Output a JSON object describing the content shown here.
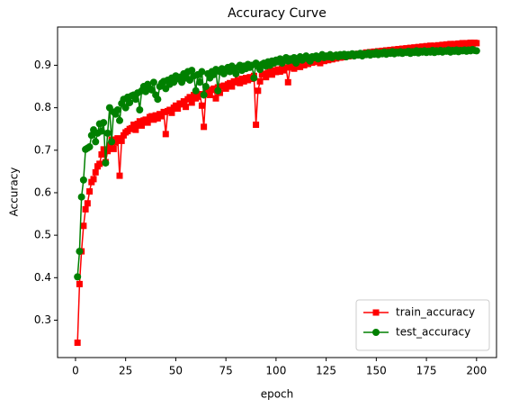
{
  "chart_data": {
    "type": "line",
    "title": "Accuracy Curve",
    "xlabel": "epoch",
    "ylabel": "Accuracy",
    "x": [
      1,
      2,
      3,
      4,
      5,
      6,
      7,
      8,
      9,
      10,
      11,
      12,
      13,
      14,
      15,
      16,
      17,
      18,
      19,
      20,
      21,
      22,
      23,
      24,
      25,
      26,
      27,
      28,
      29,
      30,
      31,
      32,
      33,
      34,
      35,
      36,
      37,
      38,
      39,
      40,
      41,
      42,
      43,
      44,
      45,
      46,
      47,
      48,
      49,
      50,
      51,
      52,
      53,
      54,
      55,
      56,
      57,
      58,
      59,
      60,
      61,
      62,
      63,
      64,
      65,
      66,
      67,
      68,
      69,
      70,
      71,
      72,
      73,
      74,
      75,
      76,
      77,
      78,
      79,
      80,
      81,
      82,
      83,
      84,
      85,
      86,
      87,
      88,
      89,
      90,
      91,
      92,
      93,
      94,
      95,
      96,
      97,
      98,
      99,
      100,
      101,
      102,
      103,
      104,
      105,
      106,
      107,
      108,
      109,
      110,
      111,
      112,
      113,
      114,
      115,
      116,
      117,
      118,
      119,
      120,
      121,
      122,
      123,
      124,
      125,
      126,
      127,
      128,
      129,
      130,
      131,
      132,
      133,
      134,
      135,
      136,
      137,
      138,
      139,
      140,
      141,
      142,
      143,
      144,
      145,
      146,
      147,
      148,
      149,
      150,
      151,
      152,
      153,
      154,
      155,
      156,
      157,
      158,
      159,
      160,
      161,
      162,
      163,
      164,
      165,
      166,
      167,
      168,
      169,
      170,
      171,
      172,
      173,
      174,
      175,
      176,
      177,
      178,
      179,
      180,
      181,
      182,
      183,
      184,
      185,
      186,
      187,
      188,
      189,
      190,
      191,
      192,
      193,
      194,
      195,
      196,
      197,
      198,
      199,
      200
    ],
    "series": [
      {
        "name": "train_accuracy",
        "color": "#ff0000",
        "marker": "square",
        "values": [
          0.247,
          0.385,
          0.462,
          0.522,
          0.561,
          0.575,
          0.603,
          0.625,
          0.632,
          0.648,
          0.662,
          0.668,
          0.69,
          0.702,
          0.672,
          0.698,
          0.712,
          0.725,
          0.703,
          0.718,
          0.728,
          0.64,
          0.722,
          0.735,
          0.742,
          0.745,
          0.75,
          0.752,
          0.76,
          0.748,
          0.762,
          0.768,
          0.758,
          0.77,
          0.772,
          0.765,
          0.778,
          0.78,
          0.772,
          0.782,
          0.775,
          0.785,
          0.78,
          0.79,
          0.738,
          0.792,
          0.795,
          0.788,
          0.8,
          0.805,
          0.798,
          0.81,
          0.808,
          0.815,
          0.802,
          0.82,
          0.825,
          0.812,
          0.83,
          0.822,
          0.826,
          0.832,
          0.805,
          0.755,
          0.835,
          0.838,
          0.83,
          0.842,
          0.845,
          0.822,
          0.848,
          0.835,
          0.85,
          0.852,
          0.845,
          0.855,
          0.858,
          0.85,
          0.862,
          0.86,
          0.865,
          0.858,
          0.868,
          0.862,
          0.87,
          0.865,
          0.872,
          0.868,
          0.875,
          0.76,
          0.84,
          0.862,
          0.878,
          0.88,
          0.872,
          0.882,
          0.885,
          0.878,
          0.888,
          0.884,
          0.89,
          0.885,
          0.892,
          0.888,
          0.895,
          0.86,
          0.895,
          0.898,
          0.892,
          0.9,
          0.902,
          0.896,
          0.905,
          0.9,
          0.908,
          0.903,
          0.91,
          0.906,
          0.912,
          0.908,
          0.912,
          0.905,
          0.915,
          0.91,
          0.916,
          0.912,
          0.918,
          0.914,
          0.92,
          0.916,
          0.92,
          0.918,
          0.922,
          0.919,
          0.923,
          0.921,
          0.925,
          0.922,
          0.926,
          0.924,
          0.927,
          0.925,
          0.928,
          0.926,
          0.93,
          0.928,
          0.931,
          0.929,
          0.932,
          0.93,
          0.933,
          0.931,
          0.934,
          0.932,
          0.935,
          0.933,
          0.936,
          0.934,
          0.937,
          0.935,
          0.938,
          0.936,
          0.939,
          0.937,
          0.94,
          0.938,
          0.941,
          0.939,
          0.942,
          0.94,
          0.943,
          0.941,
          0.944,
          0.942,
          0.945,
          0.943,
          0.946,
          0.944,
          0.946,
          0.945,
          0.947,
          0.945,
          0.948,
          0.946,
          0.949,
          0.947,
          0.95,
          0.948,
          0.95,
          0.949,
          0.951,
          0.949,
          0.952,
          0.95,
          0.952,
          0.951,
          0.953,
          0.951,
          0.953,
          0.952
        ]
      },
      {
        "name": "test_accuracy",
        "color": "#008000",
        "marker": "circle",
        "values": [
          0.402,
          0.462,
          0.59,
          0.63,
          0.702,
          0.705,
          0.708,
          0.735,
          0.748,
          0.72,
          0.74,
          0.762,
          0.745,
          0.765,
          0.67,
          0.74,
          0.8,
          0.72,
          0.79,
          0.785,
          0.795,
          0.77,
          0.81,
          0.82,
          0.8,
          0.825,
          0.812,
          0.828,
          0.83,
          0.82,
          0.835,
          0.795,
          0.84,
          0.85,
          0.838,
          0.855,
          0.845,
          0.842,
          0.86,
          0.83,
          0.82,
          0.85,
          0.858,
          0.862,
          0.845,
          0.865,
          0.855,
          0.87,
          0.86,
          0.875,
          0.868,
          0.872,
          0.86,
          0.88,
          0.87,
          0.885,
          0.865,
          0.888,
          0.875,
          0.84,
          0.878,
          0.86,
          0.885,
          0.83,
          0.85,
          0.88,
          0.87,
          0.885,
          0.878,
          0.89,
          0.84,
          0.885,
          0.892,
          0.88,
          0.89,
          0.895,
          0.885,
          0.898,
          0.89,
          0.88,
          0.895,
          0.9,
          0.888,
          0.898,
          0.892,
          0.902,
          0.895,
          0.9,
          0.87,
          0.905,
          0.898,
          0.89,
          0.902,
          0.905,
          0.898,
          0.908,
          0.9,
          0.91,
          0.905,
          0.912,
          0.908,
          0.915,
          0.905,
          0.912,
          0.918,
          0.91,
          0.915,
          0.912,
          0.918,
          0.905,
          0.915,
          0.92,
          0.912,
          0.918,
          0.922,
          0.915,
          0.91,
          0.92,
          0.918,
          0.922,
          0.915,
          0.92,
          0.925,
          0.918,
          0.922,
          0.92,
          0.925,
          0.918,
          0.922,
          0.924,
          0.92,
          0.925,
          0.922,
          0.926,
          0.92,
          0.925,
          0.923,
          0.927,
          0.922,
          0.926,
          0.924,
          0.928,
          0.922,
          0.927,
          0.925,
          0.929,
          0.924,
          0.928,
          0.926,
          0.93,
          0.925,
          0.929,
          0.927,
          0.931,
          0.926,
          0.93,
          0.928,
          0.932,
          0.927,
          0.931,
          0.929,
          0.932,
          0.928,
          0.931,
          0.93,
          0.933,
          0.928,
          0.932,
          0.93,
          0.934,
          0.929,
          0.933,
          0.931,
          0.934,
          0.93,
          0.933,
          0.931,
          0.935,
          0.93,
          0.934,
          0.932,
          0.935,
          0.931,
          0.934,
          0.933,
          0.936,
          0.931,
          0.935,
          0.933,
          0.936,
          0.932,
          0.935,
          0.934,
          0.936,
          0.933,
          0.936,
          0.934,
          0.937,
          0.935,
          0.934
        ]
      }
    ],
    "xlim": [
      -8.95,
      209.95
    ],
    "xticks": [
      0,
      25,
      50,
      75,
      100,
      125,
      150,
      175,
      200
    ],
    "ylim": [
      0.212,
      0.99
    ],
    "yticks": [
      0.3,
      0.4,
      0.5,
      0.6,
      0.7,
      0.8,
      0.9
    ],
    "legend": "lower right",
    "grid": false
  }
}
